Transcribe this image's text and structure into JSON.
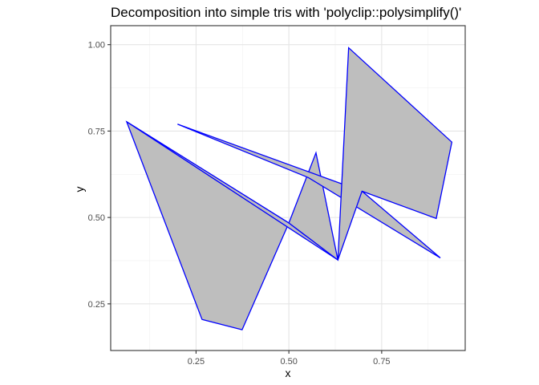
{
  "chart_data": {
    "type": "area",
    "title": "Decomposition into simple tris with 'polyclip::polysimplify()'",
    "xlabel": "x",
    "ylabel": "y",
    "xlim": [
      0.02,
      0.975
    ],
    "ylim": [
      0.115,
      1.055
    ],
    "x_ticks": [
      0.25,
      0.5,
      0.75
    ],
    "x_tick_labels": [
      "0.25",
      "0.50",
      "0.75"
    ],
    "y_ticks": [
      0.25,
      0.5,
      0.75,
      1.0
    ],
    "y_tick_labels": [
      "0.25",
      "0.50",
      "0.75",
      "1.00"
    ],
    "x_minor_ticks": [
      0.125,
      0.375,
      0.625,
      0.875
    ],
    "y_minor_ticks": [
      0.375,
      0.625,
      0.875
    ],
    "grid": true,
    "fill_color": "#bebebe",
    "stroke_color": "#0000ff",
    "polygons": [
      [
        [
          0.063,
          0.777
        ],
        [
          0.266,
          0.205
        ],
        [
          0.374,
          0.175
        ],
        [
          0.5,
          0.484
        ]
      ],
      [
        [
          0.063,
          0.777
        ],
        [
          0.5,
          0.484
        ],
        [
          0.632,
          0.377
        ]
      ],
      [
        [
          0.5,
          0.484
        ],
        [
          0.573,
          0.687
        ],
        [
          0.632,
          0.377
        ]
      ],
      [
        [
          0.2,
          0.77
        ],
        [
          0.553,
          0.615
        ],
        [
          0.908,
          0.383
        ],
        [
          0.697,
          0.576
        ]
      ],
      [
        [
          0.661,
          0.991
        ],
        [
          0.939,
          0.718
        ],
        [
          0.897,
          0.497
        ],
        [
          0.697,
          0.576
        ],
        [
          0.632,
          0.377
        ]
      ]
    ]
  }
}
